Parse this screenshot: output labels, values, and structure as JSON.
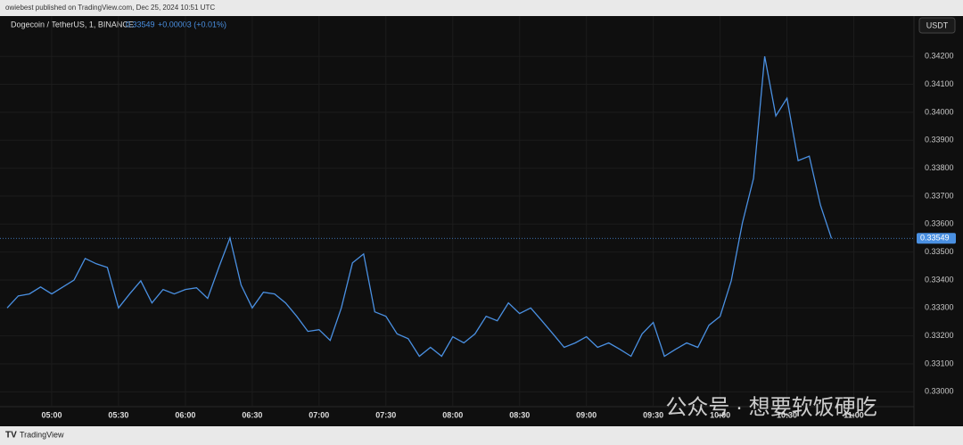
{
  "chart_data": {
    "type": "line",
    "published": "owiebest published on TradingView.com, Dec 25, 2024 10:51 UTC",
    "title": "Dogecoin / TetherUS, 1, BINANCE",
    "last_price": 0.33549,
    "change": "+0.00003 (+0.01%)",
    "currency": "USDT",
    "brand": "TradingView",
    "watermark": "公众号 · 想要软饭硬吃",
    "x": [
      "04:40",
      "04:45",
      "04:50",
      "04:55",
      "05:00",
      "05:05",
      "05:10",
      "05:15",
      "05:20",
      "05:25",
      "05:30",
      "05:35",
      "05:40",
      "05:45",
      "05:50",
      "05:55",
      "06:00",
      "06:05",
      "06:10",
      "06:15",
      "06:20",
      "06:25",
      "06:30",
      "06:35",
      "06:40",
      "06:45",
      "06:50",
      "06:55",
      "07:00",
      "07:05",
      "07:10",
      "07:15",
      "07:20",
      "07:25",
      "07:30",
      "07:35",
      "07:40",
      "07:45",
      "07:50",
      "07:55",
      "08:00",
      "08:05",
      "08:10",
      "08:15",
      "08:20",
      "08:25",
      "08:30",
      "08:35",
      "08:40",
      "08:45",
      "08:50",
      "08:55",
      "09:00",
      "09:05",
      "09:10",
      "09:15",
      "09:20",
      "09:25",
      "09:30",
      "09:35",
      "09:40",
      "09:45",
      "09:50",
      "09:55",
      "10:00",
      "10:05",
      "10:10",
      "10:15",
      "10:20",
      "10:25",
      "10:30",
      "10:35",
      "10:40",
      "10:45",
      "10:50"
    ],
    "series": [
      {
        "name": "Dogecoin / TetherUS",
        "color": "#4a90e2",
        "values": [
          0.333,
          0.33343,
          0.3335,
          0.33375,
          0.3335,
          0.33375,
          0.334,
          0.33477,
          0.33458,
          0.33445,
          0.333,
          0.3335,
          0.33397,
          0.33318,
          0.33366,
          0.3335,
          0.33366,
          0.33372,
          0.33334,
          0.33445,
          0.3355,
          0.33382,
          0.333,
          0.33356,
          0.3335,
          0.33318,
          0.3327,
          0.33216,
          0.33222,
          0.33184,
          0.333,
          0.33461,
          0.33493,
          0.33286,
          0.3327,
          0.33207,
          0.3319,
          0.33127,
          0.33159,
          0.33127,
          0.33197,
          0.33175,
          0.33207,
          0.3327,
          0.33254,
          0.33318,
          0.3328,
          0.333,
          0.33254,
          0.33207,
          0.33159,
          0.33175,
          0.33197,
          0.33159,
          0.33175,
          0.33152,
          0.33127,
          0.33207,
          0.33248,
          0.33127,
          0.33152,
          0.33175,
          0.33159,
          0.33238,
          0.3327,
          0.33397,
          0.33604,
          0.33764,
          0.342,
          0.33987,
          0.3405,
          0.33827,
          0.33843,
          0.33668,
          0.33549
        ]
      }
    ],
    "xlim": [
      "04:40",
      "11:27"
    ],
    "xticks": [
      "05:00",
      "05:30",
      "06:00",
      "06:30",
      "07:00",
      "07:30",
      "08:00",
      "08:30",
      "09:00",
      "09:30",
      "10:00",
      "10:30",
      "11:00"
    ],
    "ylim": [
      0.3295,
      0.3429
    ],
    "yticks": [
      {
        "value": 0.33,
        "label": "0.33000"
      },
      {
        "value": 0.331,
        "label": "0.33100"
      },
      {
        "value": 0.332,
        "label": "0.33200"
      },
      {
        "value": 0.333,
        "label": "0.33300"
      },
      {
        "value": 0.334,
        "label": "0.33400"
      },
      {
        "value": 0.335,
        "label": "0.33500"
      },
      {
        "value": 0.336,
        "label": "0.33600"
      },
      {
        "value": 0.337,
        "label": "0.33700"
      },
      {
        "value": 0.338,
        "label": "0.33800"
      },
      {
        "value": 0.339,
        "label": "0.33900"
      },
      {
        "value": 0.34,
        "label": "0.34000"
      },
      {
        "value": 0.341,
        "label": "0.34100"
      },
      {
        "value": 0.342,
        "label": "0.34200"
      }
    ],
    "grid": true
  }
}
